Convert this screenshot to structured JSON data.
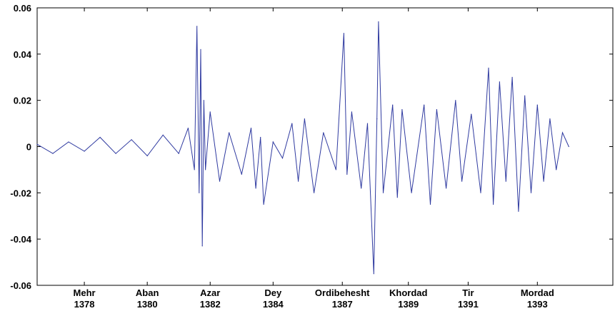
{
  "chart_data": {
    "type": "line",
    "title": "",
    "xlabel": "",
    "ylabel": "",
    "ylim": [
      -0.06,
      0.06
    ],
    "xlim": [
      1376.5,
      1394.8
    ],
    "grid": false,
    "legend": "none",
    "y_ticks": [
      {
        "value": 0.06,
        "label": "0.06"
      },
      {
        "value": 0.04,
        "label": "0.04"
      },
      {
        "value": 0.02,
        "label": "0.02"
      },
      {
        "value": 0,
        "label": "0"
      },
      {
        "value": -0.02,
        "label": "-0.02"
      },
      {
        "value": -0.04,
        "label": "-0.04"
      },
      {
        "value": -0.06,
        "label": "-0.06"
      }
    ],
    "x_ticks": [
      {
        "value": 1378.0,
        "month": "Mehr",
        "year": "1378"
      },
      {
        "value": 1380.0,
        "month": "Aban",
        "year": "1380"
      },
      {
        "value": 1382.0,
        "month": "Azar",
        "year": "1382"
      },
      {
        "value": 1384.0,
        "month": "Dey",
        "year": "1384"
      },
      {
        "value": 1386.2,
        "month": "Ordibehesht",
        "year": "1387"
      },
      {
        "value": 1388.3,
        "month": "Khordad",
        "year": "1389"
      },
      {
        "value": 1390.2,
        "month": "Tir",
        "year": "1391"
      },
      {
        "value": 1392.4,
        "month": "Mordad",
        "year": "1393"
      }
    ],
    "series": [
      {
        "color": "#2f3aa0",
        "x": [
          1376.5,
          1377.0,
          1377.5,
          1378.0,
          1378.5,
          1379.0,
          1379.5,
          1380.0,
          1380.5,
          1381.0,
          1381.3,
          1381.5,
          1381.58,
          1381.65,
          1381.7,
          1381.75,
          1381.8,
          1381.85,
          1382.0,
          1382.3,
          1382.6,
          1383.0,
          1383.3,
          1383.45,
          1383.6,
          1383.7,
          1384.0,
          1384.3,
          1384.6,
          1384.8,
          1385.0,
          1385.3,
          1385.6,
          1386.0,
          1386.25,
          1386.35,
          1386.5,
          1386.8,
          1387.0,
          1387.2,
          1387.3,
          1387.35,
          1387.5,
          1387.8,
          1387.95,
          1388.1,
          1388.4,
          1388.8,
          1389.0,
          1389.2,
          1389.5,
          1389.8,
          1390.0,
          1390.3,
          1390.6,
          1390.85,
          1391.0,
          1391.2,
          1391.4,
          1391.6,
          1391.8,
          1392.0,
          1392.2,
          1392.4,
          1392.6,
          1392.8,
          1393.0,
          1393.2,
          1393.4
        ],
        "values": [
          0.001,
          -0.003,
          0.002,
          -0.002,
          0.004,
          -0.003,
          0.003,
          -0.004,
          0.005,
          -0.003,
          0.008,
          -0.01,
          0.052,
          -0.02,
          0.042,
          -0.043,
          0.02,
          -0.01,
          0.015,
          -0.015,
          0.006,
          -0.012,
          0.008,
          -0.018,
          0.004,
          -0.025,
          0.002,
          -0.005,
          0.01,
          -0.015,
          0.012,
          -0.02,
          0.006,
          -0.01,
          0.049,
          -0.012,
          0.015,
          -0.018,
          0.01,
          -0.055,
          0.012,
          0.054,
          -0.02,
          0.018,
          -0.022,
          0.016,
          -0.02,
          0.018,
          -0.025,
          0.016,
          -0.018,
          0.02,
          -0.015,
          0.014,
          -0.02,
          0.034,
          -0.025,
          0.028,
          -0.015,
          0.03,
          -0.028,
          0.022,
          -0.02,
          0.018,
          -0.015,
          0.012,
          -0.01,
          0.006,
          0.0
        ]
      }
    ]
  }
}
